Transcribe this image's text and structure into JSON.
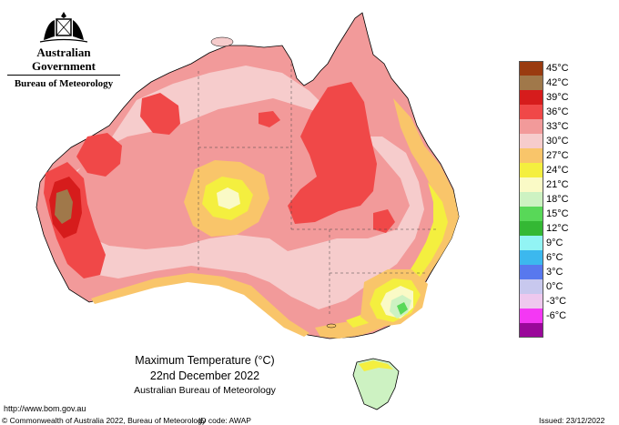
{
  "branding": {
    "government": "Australian Government",
    "agency": "Bureau of Meteorology"
  },
  "map": {
    "title_line1": "Maximum Temperature (°C)",
    "title_line2": "22nd December 2022",
    "title_line3": "Australian Bureau of Meteorology"
  },
  "legend": {
    "items": [
      {
        "label": "45°C",
        "color": "#9a3b10"
      },
      {
        "label": "42°C",
        "color": "#a0784a"
      },
      {
        "label": "39°C",
        "color": "#d61c1c"
      },
      {
        "label": "36°C",
        "color": "#f04848"
      },
      {
        "label": "33°C",
        "color": "#f29a9a"
      },
      {
        "label": "30°C",
        "color": "#f6cccc"
      },
      {
        "label": "27°C",
        "color": "#f9c56a"
      },
      {
        "label": "24°C",
        "color": "#f4ef3f"
      },
      {
        "label": "21°C",
        "color": "#fafac6"
      },
      {
        "label": "18°C",
        "color": "#cdf2c2"
      },
      {
        "label": "15°C",
        "color": "#58d858"
      },
      {
        "label": "12°C",
        "color": "#34b834"
      },
      {
        "label": "9°C",
        "color": "#92f4f4"
      },
      {
        "label": "6°C",
        "color": "#3cb8ee"
      },
      {
        "label": "3°C",
        "color": "#5878ee"
      },
      {
        "label": "0°C",
        "color": "#c8c8ee"
      },
      {
        "label": "-3°C",
        "color": "#eec8ee"
      },
      {
        "label": "-6°C",
        "color": "#f438f4"
      },
      {
        "label": "",
        "color": "#9a089a"
      }
    ]
  },
  "footer": {
    "url": "http://www.bom.gov.au",
    "copyright": "© Commonwealth of Australia 2022, Bureau of Meteorology",
    "id_code": "ID code: AWAP",
    "issued": "Issued: 23/12/2022"
  }
}
